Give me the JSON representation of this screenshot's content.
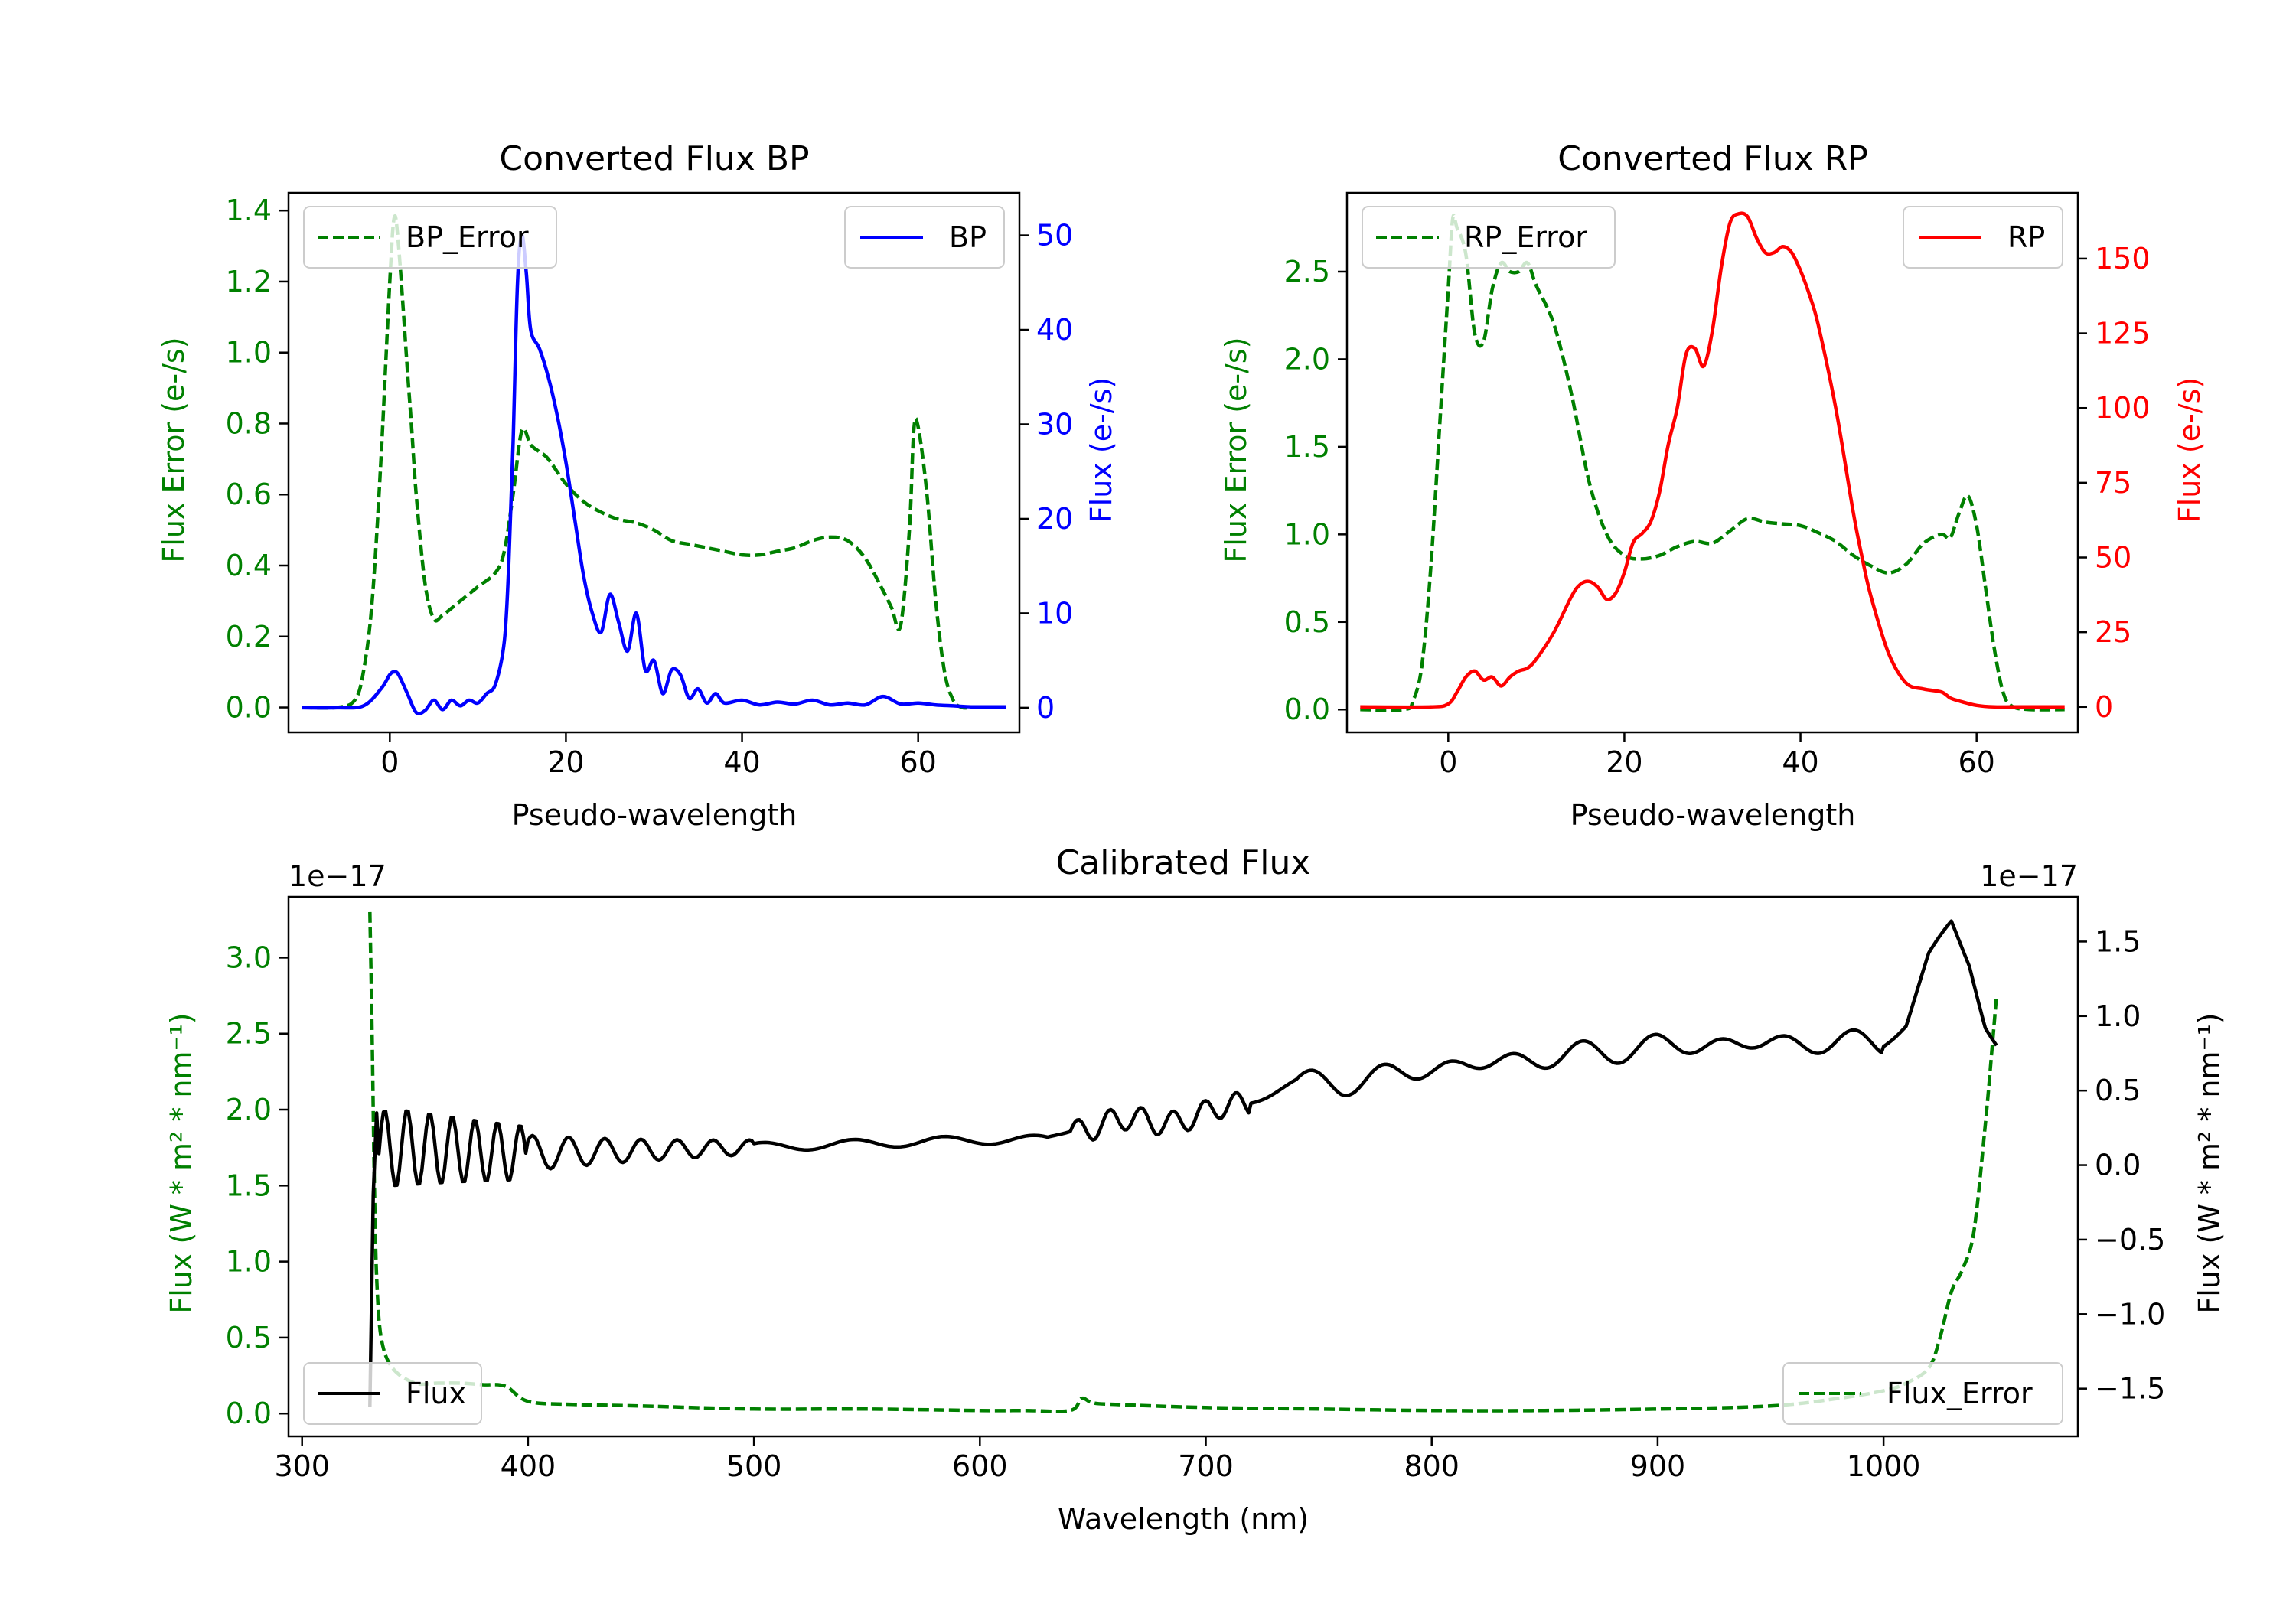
{
  "chart_data": [
    {
      "type": "line",
      "title": "Converted Flux BP",
      "xlabel": "Pseudo-wavelength",
      "ylabel_left": "Flux Error (e-/s)",
      "ylabel_right": "Flux (e-/s)",
      "xlim": [
        -11.5,
        71.5
      ],
      "ylim_left": [
        -0.07,
        1.45
      ],
      "ylim_right": [
        -2.6,
        54.5
      ],
      "xticks": [
        0,
        20,
        40,
        60
      ],
      "yticks_left": [
        0.0,
        0.2,
        0.4,
        0.6,
        0.8,
        1.0,
        1.2,
        1.4
      ],
      "yticks_right": [
        0,
        10,
        20,
        30,
        40,
        50
      ],
      "legend_left": {
        "label": "BP_Error",
        "position": "upper left"
      },
      "legend_right": {
        "label": "BP",
        "position": "upper right"
      },
      "series": [
        {
          "name": "BP_Error",
          "axis": "left",
          "color": "#008000",
          "style": "dashed",
          "x": [
            -10,
            -6,
            -4,
            -3,
            -2,
            -1,
            0,
            0.5,
            1,
            2,
            2.5,
            3,
            4,
            5,
            6,
            8,
            10,
            12,
            13,
            14,
            15,
            16,
            17,
            18,
            20,
            22,
            24,
            26,
            28,
            30,
            32,
            34,
            36,
            38,
            40,
            42,
            44,
            46,
            48,
            50,
            52,
            54,
            56,
            57,
            58,
            59,
            59.5,
            60,
            61,
            62,
            63,
            64,
            65,
            66,
            68,
            70
          ],
          "y": [
            0.0,
            0.0,
            0.02,
            0.1,
            0.3,
            0.7,
            1.2,
            1.38,
            1.3,
            0.95,
            0.78,
            0.6,
            0.35,
            0.25,
            0.26,
            0.3,
            0.34,
            0.38,
            0.44,
            0.6,
            0.78,
            0.74,
            0.72,
            0.7,
            0.63,
            0.58,
            0.55,
            0.53,
            0.52,
            0.5,
            0.47,
            0.46,
            0.45,
            0.44,
            0.43,
            0.43,
            0.44,
            0.45,
            0.47,
            0.48,
            0.47,
            0.42,
            0.33,
            0.28,
            0.23,
            0.5,
            0.78,
            0.79,
            0.6,
            0.3,
            0.1,
            0.02,
            0.0,
            0.0,
            0.0,
            0.0
          ]
        },
        {
          "name": "BP",
          "axis": "right",
          "color": "#0000ff",
          "style": "solid",
          "x": [
            -10,
            -6,
            -3,
            -1,
            0,
            0.5,
            1,
            2,
            3,
            4,
            5,
            6,
            7,
            8,
            9,
            10,
            11,
            12,
            13,
            13.5,
            14,
            14.5,
            15,
            15.5,
            16,
            17,
            18,
            19,
            20,
            21,
            22,
            23,
            24,
            25,
            26,
            27,
            28,
            29,
            30,
            31,
            32,
            33,
            34,
            35,
            36,
            37,
            38,
            40,
            42,
            44,
            46,
            48,
            50,
            52,
            54,
            56,
            58,
            60,
            62,
            64,
            66,
            68,
            70
          ],
          "y": [
            0,
            0,
            0.2,
            2,
            3.5,
            3.8,
            3.5,
            1.5,
            -0.5,
            -0.3,
            0.8,
            -0.2,
            0.8,
            0.2,
            0.8,
            0.5,
            1.5,
            2.5,
            7,
            15,
            28,
            45,
            50,
            46,
            40,
            38,
            35,
            31,
            26,
            20,
            14,
            10,
            8,
            12,
            9,
            6,
            10,
            4,
            5,
            1.5,
            4,
            3.5,
            1,
            2,
            0.5,
            1.5,
            0.5,
            0.8,
            0.3,
            0.6,
            0.4,
            0.8,
            0.3,
            0.5,
            0.3,
            1.2,
            0.4,
            0.5,
            0.3,
            0.2,
            0.1,
            0.1,
            0.1
          ]
        }
      ]
    },
    {
      "type": "line",
      "title": "Converted Flux RP",
      "xlabel": "Pseudo-wavelength",
      "ylabel_left": "Flux Error (e-/s)",
      "ylabel_right": "Flux (e-/s)",
      "xlim": [
        -11.5,
        71.5
      ],
      "ylim_left": [
        -0.13,
        2.95
      ],
      "ylim_right": [
        -8.5,
        172
      ],
      "xticks": [
        0,
        20,
        40,
        60
      ],
      "yticks_left": [
        0.0,
        0.5,
        1.0,
        1.5,
        2.0,
        2.5
      ],
      "yticks_right": [
        0,
        25,
        50,
        75,
        100,
        125,
        150
      ],
      "legend_left": {
        "label": "RP_Error",
        "position": "upper left"
      },
      "legend_right": {
        "label": "RP",
        "position": "upper right"
      },
      "series": [
        {
          "name": "RP_Error",
          "axis": "left",
          "color": "#008000",
          "style": "dashed",
          "x": [
            -10,
            -5,
            -4,
            -3,
            -2,
            -1,
            0,
            0.5,
            1,
            2,
            3,
            4,
            5,
            6,
            7,
            8,
            9,
            10,
            12,
            14,
            16,
            18,
            20,
            22,
            24,
            26,
            28,
            30,
            32,
            34,
            36,
            38,
            40,
            42,
            44,
            46,
            48,
            50,
            52,
            54,
            56,
            57,
            58,
            59,
            60,
            61,
            62,
            63,
            64,
            66,
            70
          ],
          "y": [
            0.0,
            0.0,
            0.05,
            0.25,
            0.8,
            1.6,
            2.4,
            2.8,
            2.75,
            2.6,
            2.15,
            2.1,
            2.4,
            2.55,
            2.5,
            2.5,
            2.55,
            2.42,
            2.2,
            1.8,
            1.3,
            1.0,
            0.88,
            0.86,
            0.88,
            0.93,
            0.96,
            0.95,
            1.02,
            1.09,
            1.07,
            1.06,
            1.05,
            1.01,
            0.96,
            0.88,
            0.82,
            0.78,
            0.83,
            0.95,
            1.0,
            0.98,
            1.12,
            1.22,
            1.05,
            0.7,
            0.35,
            0.1,
            0.02,
            0.0,
            0.0
          ]
        },
        {
          "name": "RP",
          "axis": "right",
          "color": "#ff0000",
          "style": "solid",
          "x": [
            -10,
            -2,
            0,
            1,
            2,
            3,
            4,
            5,
            6,
            7,
            8,
            9,
            10,
            12,
            14,
            15,
            16,
            17,
            18,
            19,
            20,
            21,
            22,
            23,
            24,
            25,
            26,
            27,
            28,
            29,
            30,
            31,
            32,
            33,
            34,
            35,
            36,
            37,
            38,
            39,
            40,
            41,
            42,
            44,
            46,
            47,
            48,
            50,
            52,
            54,
            56,
            57,
            58,
            60,
            62,
            64,
            66,
            70
          ],
          "y": [
            0,
            0,
            1,
            5,
            10,
            12,
            9,
            10,
            7,
            10,
            12,
            13,
            16,
            25,
            37,
            41,
            42,
            40,
            36,
            38,
            45,
            55,
            58,
            62,
            72,
            88,
            100,
            118,
            120,
            114,
            126,
            147,
            162,
            165,
            164,
            157,
            152,
            152,
            154,
            152,
            146,
            138,
            128,
            100,
            65,
            50,
            37,
            18,
            8,
            6,
            5,
            3,
            2,
            0.5,
            0,
            0,
            0,
            0
          ]
        }
      ]
    },
    {
      "type": "line",
      "title": "Calibrated Flux",
      "xlabel": "Wavelength (nm)",
      "ylabel_left": "Flux (W * m² * nm⁻¹)",
      "ylabel_right": "Flux (W * m² * nm⁻¹)",
      "offset_left": "1e−17",
      "offset_right": "1e−17",
      "xlim": [
        294,
        1086
      ],
      "ylim_left": [
        -0.15,
        3.4
      ],
      "ylim_right": [
        -1.82,
        1.8
      ],
      "xticks": [
        300,
        400,
        500,
        600,
        700,
        800,
        900,
        1000
      ],
      "yticks_left": [
        0.0,
        0.5,
        1.0,
        1.5,
        2.0,
        2.5,
        3.0
      ],
      "yticks_right": [
        -1.5,
        -1.0,
        -0.5,
        0.0,
        0.5,
        1.0,
        1.5
      ],
      "legend_left": {
        "label": "Flux",
        "position": "lower left"
      },
      "legend_right": {
        "label": "Flux_Error",
        "position": "lower right"
      },
      "series": [
        {
          "name": "Flux_Error",
          "axis": "left",
          "color": "#008000",
          "style": "dashed",
          "x": [
            330,
            331,
            332,
            333,
            335,
            340,
            350,
            360,
            370,
            380,
            390,
            400,
            420,
            450,
            500,
            550,
            600,
            620,
            640,
            645,
            650,
            660,
            700,
            750,
            800,
            850,
            900,
            950,
            980,
            1000,
            1010,
            1020,
            1025,
            1030,
            1035,
            1040,
            1045,
            1048,
            1050
          ],
          "y": [
            3.3,
            2.5,
            1.5,
            0.9,
            0.5,
            0.3,
            0.2,
            0.2,
            0.2,
            0.19,
            0.18,
            0.08,
            0.06,
            0.05,
            0.03,
            0.03,
            0.02,
            0.02,
            0.02,
            0.1,
            0.07,
            0.06,
            0.04,
            0.03,
            0.02,
            0.02,
            0.03,
            0.05,
            0.1,
            0.15,
            0.2,
            0.3,
            0.5,
            0.8,
            0.95,
            1.2,
            1.9,
            2.4,
            2.75
          ]
        }
      ]
    }
  ]
}
